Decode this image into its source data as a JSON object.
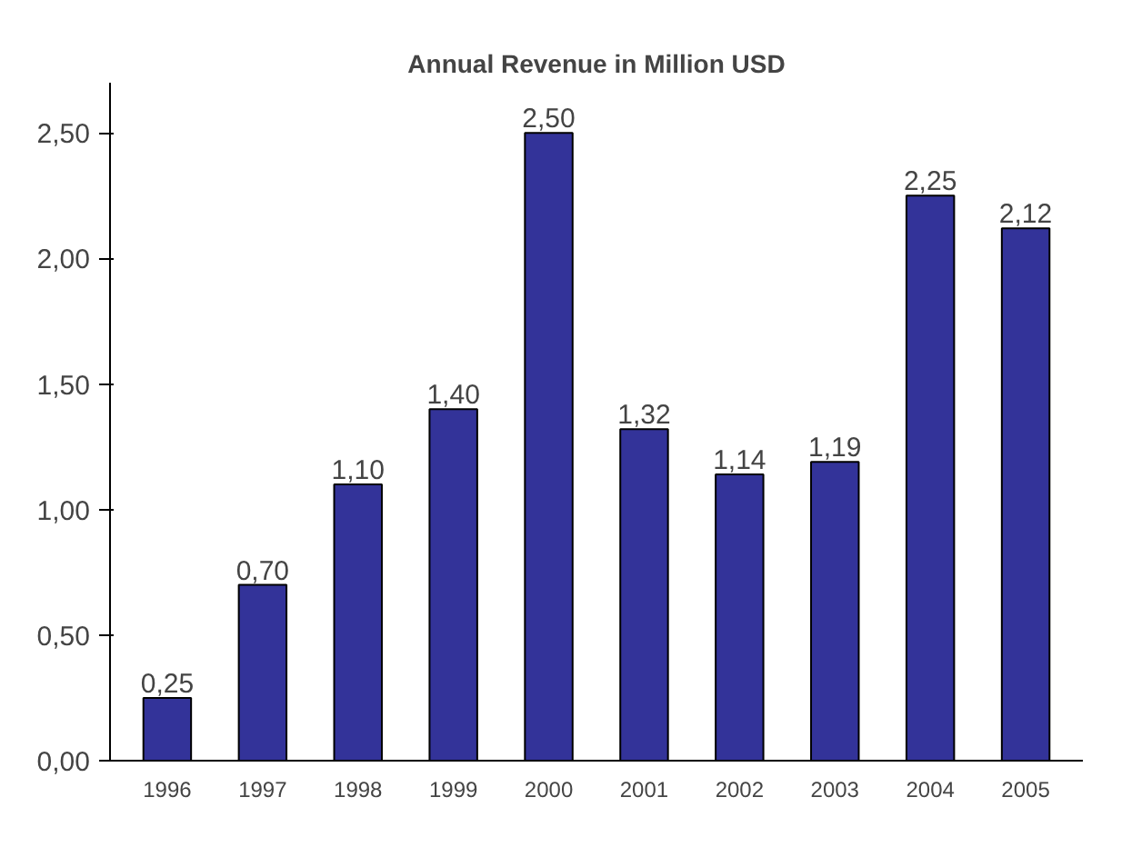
{
  "chart_data": {
    "type": "bar",
    "title": "Annual Revenue in Million USD",
    "categories": [
      "1996",
      "1997",
      "1998",
      "1999",
      "2000",
      "2001",
      "2002",
      "2003",
      "2004",
      "2005"
    ],
    "values": [
      0.25,
      0.7,
      1.1,
      1.4,
      2.5,
      1.32,
      1.14,
      1.19,
      2.25,
      2.12
    ],
    "value_labels": [
      "0,25",
      "0,70",
      "1,10",
      "1,40",
      "2,50",
      "1,32",
      "1,14",
      "1,19",
      "2,25",
      "2,12"
    ],
    "color": "#333399",
    "ylim": [
      0,
      2.7
    ],
    "yticks": [
      {
        "value": 0,
        "label": "0,00"
      },
      {
        "value": 0.5,
        "label": "0,50"
      },
      {
        "value": 1.0,
        "label": "1,00"
      },
      {
        "value": 1.5,
        "label": "1,50"
      },
      {
        "value": 2.0,
        "label": "2,00"
      },
      {
        "value": 2.5,
        "label": "2,50"
      }
    ],
    "grid": false
  }
}
